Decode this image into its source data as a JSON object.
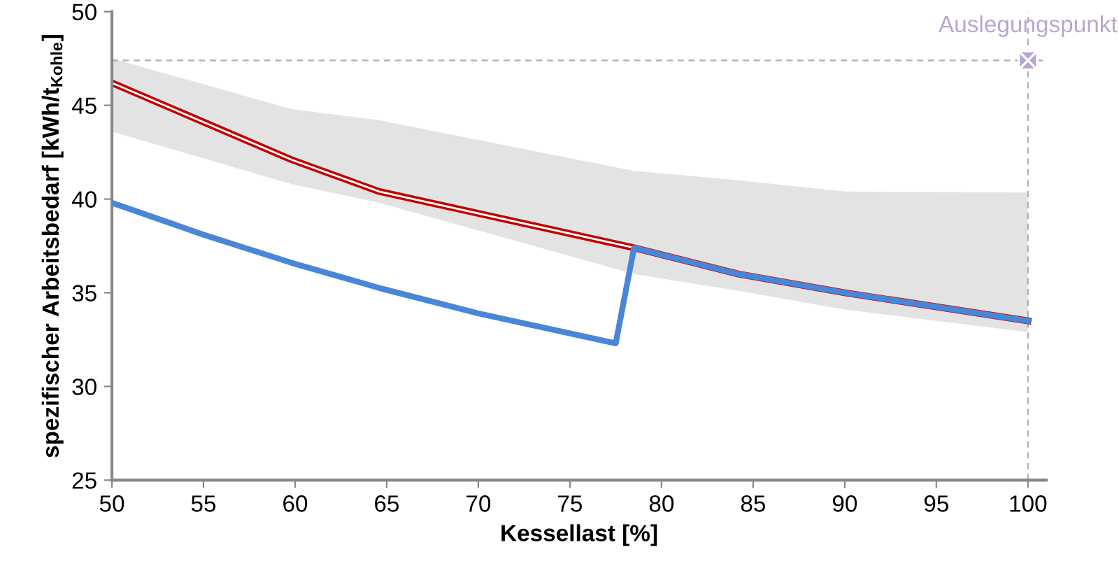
{
  "chart_data": {
    "type": "line",
    "xlabel": "Kessellast [%]",
    "ylabel": "spezifischer Arbeitsbedarf [kWh/t$_{Kohle}$]",
    "xlim": [
      50,
      101
    ],
    "xticks": [
      50,
      55,
      60,
      65,
      70,
      75,
      80,
      85,
      90,
      95,
      100
    ],
    "ylim": [
      25,
      50
    ],
    "yticks": [
      25,
      30,
      35,
      40,
      45,
      50
    ],
    "grid": false,
    "legend": false,
    "marker": "none",
    "line_style": "solid",
    "series": [
      {
        "color": "#c00000",
        "x": [
          50,
          59.8,
          64.6,
          78.5,
          84.2,
          90,
          100
        ],
        "values": [
          46.2,
          42.1,
          40.4,
          37.4,
          36.0,
          35.0,
          33.5
        ],
        "lower": [
          43.6,
          40.8,
          39.8,
          36.0,
          35.1,
          34.1,
          32.9
        ],
        "upper": [
          47.5,
          44.8,
          44.2,
          41.5,
          41.0,
          40.4,
          40.35
        ]
      },
      {
        "color": "#4a86d8",
        "x": [
          50,
          55,
          59.8,
          64.8,
          70,
          77.5,
          78.5,
          84.2,
          90,
          100
        ],
        "values": [
          39.8,
          38.1,
          36.6,
          35.2,
          33.9,
          32.3,
          37.4,
          36.0,
          35.0,
          33.5
        ]
      },
      {
        "type": "scatter",
        "color": "#b9a6cf",
        "marker": "cross",
        "x": [
          100
        ],
        "values": [
          47.4
        ]
      }
    ],
    "ref_lines": [
      {
        "axis": "y",
        "value": 47.4,
        "color": "#b0b0b0",
        "line_style": "dashed"
      },
      {
        "axis": "x",
        "value": 100,
        "color": "#b0b0b0",
        "line_style": "dashed"
      }
    ],
    "annotations": [
      {
        "text": "Auslegungspunkt",
        "x": 100,
        "y": 47.4
      }
    ]
  }
}
